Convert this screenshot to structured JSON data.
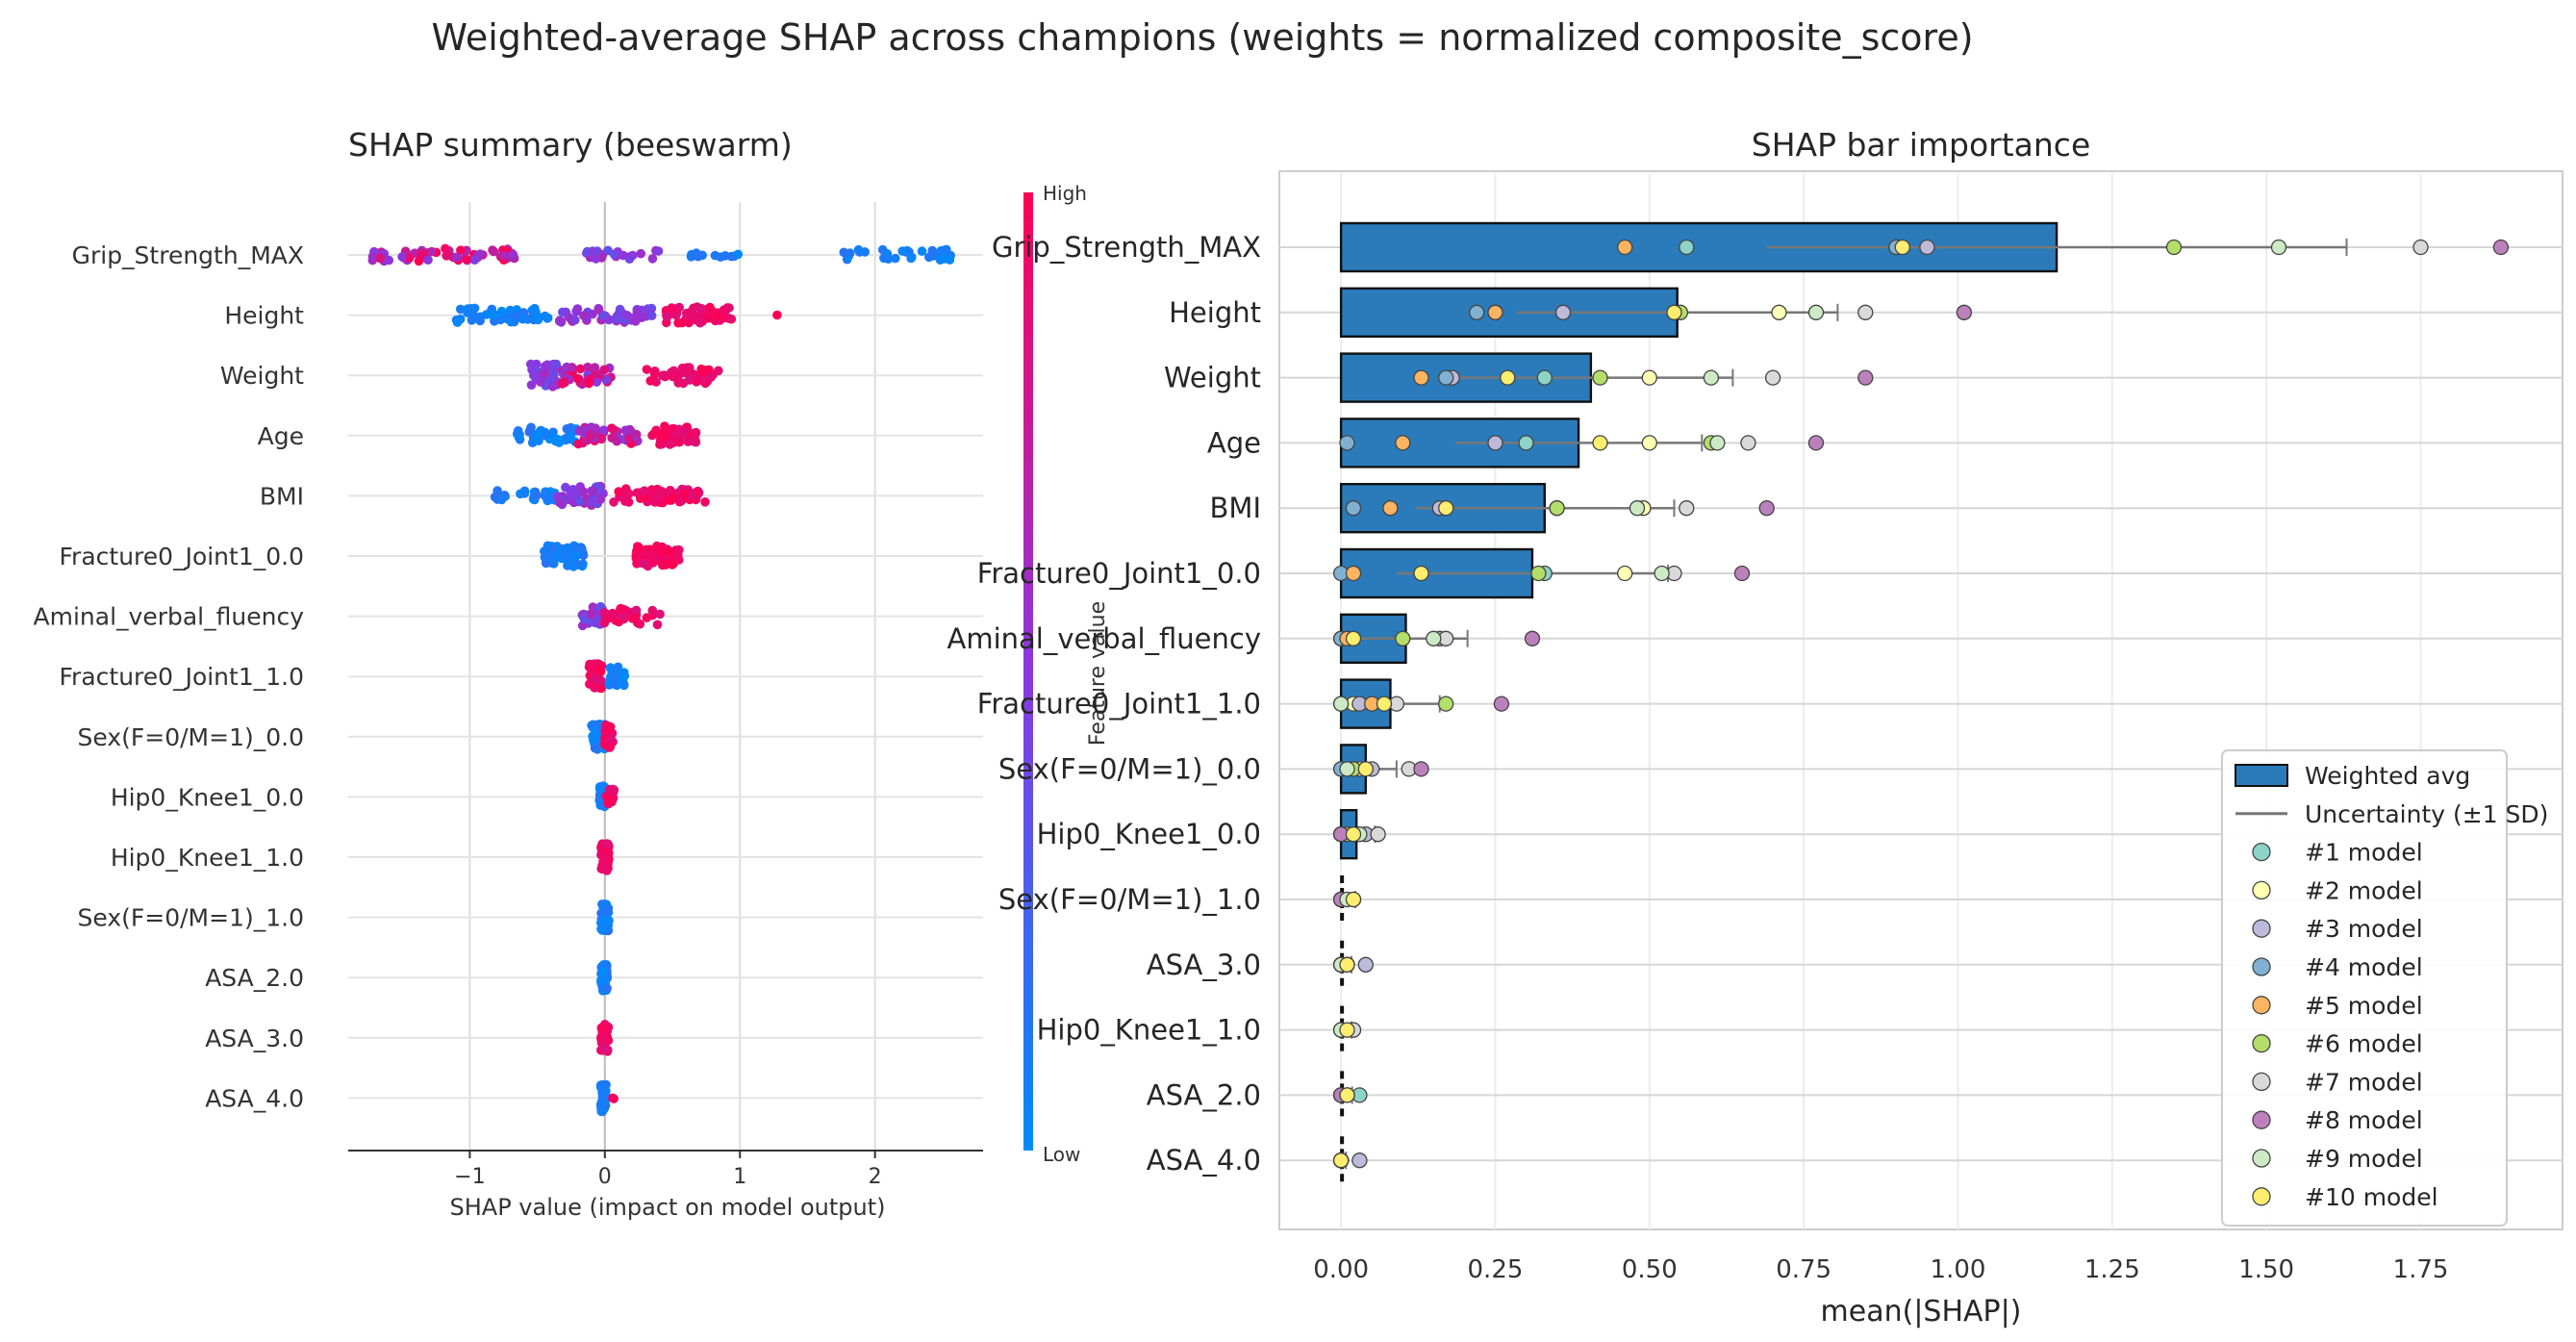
{
  "figure": {
    "title": "Weighted-average SHAP across champions (weights = normalized composite_score)"
  },
  "chart_data": [
    {
      "type": "scatter",
      "title": "SHAP summary (beeswarm)",
      "xlabel": "SHAP value (impact on model output)",
      "ylabel": "",
      "xlim": [
        -1.9,
        2.8
      ],
      "xticks": [
        -1,
        0,
        1,
        2
      ],
      "xtick_labels": [
        "−1",
        "0",
        "1",
        "2"
      ],
      "grid": true,
      "colorbar": {
        "label": "Feature value",
        "high": "High",
        "low": "Low",
        "colors": [
          "#008bfb",
          "#8a38e0",
          "#ff0052"
        ]
      },
      "features": [
        {
          "name": "Grip_Strength_MAX",
          "groups": [
            {
              "range": [
                -1.72,
                -0.62
              ],
              "n": 60,
              "color": "mix"
            },
            {
              "range": [
                -0.15,
                0.4
              ],
              "n": 24,
              "color": "purple"
            },
            {
              "range": [
                0.45,
                1.0
              ],
              "n": 12,
              "color": "blue"
            },
            {
              "range": [
                1.7,
                2.6
              ],
              "n": 34,
              "color": "blue"
            }
          ]
        },
        {
          "name": "Height",
          "groups": [
            {
              "range": [
                -1.1,
                -0.4
              ],
              "n": 52,
              "color": "blue"
            },
            {
              "range": [
                -0.35,
                0.35
              ],
              "n": 52,
              "color": "purple"
            },
            {
              "range": [
                0.45,
                0.95
              ],
              "n": 56,
              "color": "pink"
            },
            {
              "range": [
                1.25,
                1.28
              ],
              "n": 1,
              "color": "pink"
            }
          ]
        },
        {
          "name": "Weight",
          "groups": [
            {
              "range": [
                -0.55,
                -0.35
              ],
              "n": 38,
              "color": "purple"
            },
            {
              "range": [
                -0.32,
                0.05
              ],
              "n": 40,
              "color": "mix"
            },
            {
              "range": [
                0.3,
                0.85
              ],
              "n": 44,
              "color": "pink"
            }
          ]
        },
        {
          "name": "Age",
          "groups": [
            {
              "range": [
                -0.65,
                -0.2
              ],
              "n": 40,
              "color": "blue"
            },
            {
              "range": [
                -0.2,
                0.25
              ],
              "n": 44,
              "color": "mix"
            },
            {
              "range": [
                0.35,
                0.68
              ],
              "n": 40,
              "color": "pink"
            }
          ]
        },
        {
          "name": "BMI",
          "groups": [
            {
              "range": [
                -0.85,
                -0.35
              ],
              "n": 28,
              "color": "blue"
            },
            {
              "range": [
                -0.35,
                0.0
              ],
              "n": 46,
              "color": "purple"
            },
            {
              "range": [
                0.05,
                0.75
              ],
              "n": 60,
              "color": "pink"
            }
          ]
        },
        {
          "name": "Fracture0_Joint1_0.0",
          "groups": [
            {
              "range": [
                -0.45,
                -0.15
              ],
              "n": 60,
              "color": "blue"
            },
            {
              "range": [
                0.22,
                0.55
              ],
              "n": 58,
              "color": "pink"
            }
          ]
        },
        {
          "name": "Aminal_verbal_fluency",
          "groups": [
            {
              "range": [
                -0.18,
                -0.02
              ],
              "n": 30,
              "color": "purple"
            },
            {
              "range": [
                -0.02,
                0.42
              ],
              "n": 40,
              "color": "pink"
            }
          ]
        },
        {
          "name": "Fracture0_Joint1_1.0",
          "groups": [
            {
              "range": [
                -0.12,
                -0.02
              ],
              "n": 40,
              "color": "pink"
            },
            {
              "range": [
                0.03,
                0.15
              ],
              "n": 30,
              "color": "blue"
            }
          ]
        },
        {
          "name": "Sex(F=0/M=1)_0.0",
          "groups": [
            {
              "range": [
                -0.1,
                0.0
              ],
              "n": 40,
              "color": "blue"
            },
            {
              "range": [
                0.0,
                0.06
              ],
              "n": 36,
              "color": "pink"
            }
          ]
        },
        {
          "name": "Hip0_Knee1_0.0",
          "groups": [
            {
              "range": [
                -0.04,
                0.01
              ],
              "n": 36,
              "color": "blue"
            },
            {
              "range": [
                0.01,
                0.07
              ],
              "n": 24,
              "color": "pink"
            }
          ]
        },
        {
          "name": "Hip0_Knee1_1.0",
          "groups": [
            {
              "range": [
                -0.03,
                0.03
              ],
              "n": 56,
              "color": "pink"
            }
          ]
        },
        {
          "name": "Sex(F=0/M=1)_1.0",
          "groups": [
            {
              "range": [
                -0.03,
                0.03
              ],
              "n": 50,
              "color": "blue"
            }
          ]
        },
        {
          "name": "ASA_2.0",
          "groups": [
            {
              "range": [
                -0.03,
                0.02
              ],
              "n": 50,
              "color": "blue"
            }
          ]
        },
        {
          "name": "ASA_3.0",
          "groups": [
            {
              "range": [
                -0.03,
                0.03
              ],
              "n": 50,
              "color": "pink"
            }
          ]
        },
        {
          "name": "ASA_4.0",
          "groups": [
            {
              "range": [
                -0.03,
                0.01
              ],
              "n": 46,
              "color": "blue"
            },
            {
              "range": [
                0.05,
                0.08
              ],
              "n": 2,
              "color": "pink"
            }
          ]
        }
      ]
    },
    {
      "type": "bar",
      "orientation": "horizontal",
      "title": "SHAP bar importance",
      "xlabel": "mean(|SHAP|)",
      "ylabel": "Feature value",
      "xlim": [
        -0.1,
        1.98
      ],
      "xticks": [
        0.0,
        0.25,
        0.5,
        0.75,
        1.0,
        1.25,
        1.5,
        1.75
      ],
      "xtick_labels": [
        "0.00",
        "0.25",
        "0.50",
        "0.75",
        "1.00",
        "1.25",
        "1.50",
        "1.75"
      ],
      "grid": true,
      "legend_position": "lower-right",
      "legend": [
        "Weighted avg",
        "Uncertainty (±1 SD)",
        "#1 model",
        "#2 model",
        "#3 model",
        "#4 model",
        "#5 model",
        "#6 model",
        "#7 model",
        "#8 model",
        "#9 model",
        "#10 model"
      ],
      "categories": [
        "Grip_Strength_MAX",
        "Height",
        "Weight",
        "Age",
        "BMI",
        "Fracture0_Joint1_0.0",
        "Aminal_verbal_fluency",
        "Fracture0_Joint1_1.0",
        "Sex(F=0/M=1)_0.0",
        "Hip0_Knee1_0.0",
        "Sex(F=0/M=1)_1.0",
        "ASA_3.0",
        "Hip0_Knee1_1.0",
        "ASA_2.0",
        "ASA_4.0"
      ],
      "values": [
        1.16,
        0.545,
        0.405,
        0.385,
        0.33,
        0.31,
        0.105,
        0.08,
        0.04,
        0.025,
        0.008,
        0.007,
        0.007,
        0.008,
        0.003
      ],
      "sd": [
        0.47,
        0.26,
        0.23,
        0.2,
        0.21,
        0.22,
        0.1,
        0.08,
        0.05,
        0.03,
        0.015,
        0.01,
        0.01,
        0.01,
        0.005
      ],
      "model_colors": [
        "#8dd3c7",
        "#ffffb3",
        "#bebada",
        "#80b1d3",
        "#fdb462",
        "#b3de69",
        "#d9d9d9",
        "#bc80bd",
        "#ccebc5",
        "#ffed6f"
      ],
      "series": [
        {
          "name": "#1 model",
          "values": [
            0.56,
            0.25,
            0.33,
            0.3,
            0.35,
            0.33,
            0.0,
            0.0,
            0.0,
            0.0,
            0.0,
            0.01,
            0.0,
            0.03,
            0.0
          ]
        },
        {
          "name": "#2 model",
          "values": [
            0.9,
            0.71,
            0.5,
            0.5,
            0.49,
            0.46,
            0.01,
            0.02,
            0.03,
            0.01,
            0.01,
            0.0,
            0.01,
            0.0,
            0.0
          ]
        },
        {
          "name": "#3 model",
          "values": [
            0.95,
            0.36,
            0.18,
            0.25,
            0.16,
            0.13,
            0.16,
            0.03,
            0.05,
            0.04,
            0.02,
            0.04,
            0.02,
            0.0,
            0.03
          ]
        },
        {
          "name": "#4 model",
          "values": [
            0.9,
            0.22,
            0.17,
            0.01,
            0.02,
            0.0,
            0.0,
            0.0,
            0.0,
            0.0,
            0.0,
            0.0,
            0.0,
            0.0,
            0.0
          ]
        },
        {
          "name": "#5 model",
          "values": [
            0.46,
            0.25,
            0.13,
            0.1,
            0.08,
            0.02,
            0.01,
            0.05,
            0.02,
            0.02,
            0.0,
            0.0,
            0.0,
            0.0,
            0.0
          ]
        },
        {
          "name": "#6 model",
          "values": [
            1.35,
            0.55,
            0.42,
            0.6,
            0.35,
            0.32,
            0.1,
            0.17,
            0.02,
            0.01,
            0.0,
            0.0,
            0.0,
            0.0,
            0.0
          ]
        },
        {
          "name": "#7 model",
          "values": [
            1.75,
            0.85,
            0.7,
            0.66,
            0.56,
            0.54,
            0.17,
            0.09,
            0.11,
            0.06,
            0.02,
            0.01,
            0.02,
            0.01,
            0.0
          ]
        },
        {
          "name": "#8 model",
          "values": [
            1.88,
            1.01,
            0.85,
            0.77,
            0.69,
            0.65,
            0.31,
            0.26,
            0.13,
            0.0,
            0.0,
            0.0,
            0.0,
            0.0,
            0.0
          ]
        },
        {
          "name": "#9 model",
          "values": [
            1.52,
            0.77,
            0.6,
            0.61,
            0.48,
            0.52,
            0.15,
            0.0,
            0.01,
            0.03,
            0.01,
            0.0,
            0.0,
            0.01,
            0.0
          ]
        },
        {
          "name": "#10 model",
          "values": [
            0.91,
            0.54,
            0.27,
            0.42,
            0.17,
            0.13,
            0.02,
            0.07,
            0.04,
            0.02,
            0.02,
            0.01,
            0.01,
            0.01,
            0.0
          ]
        }
      ]
    }
  ]
}
